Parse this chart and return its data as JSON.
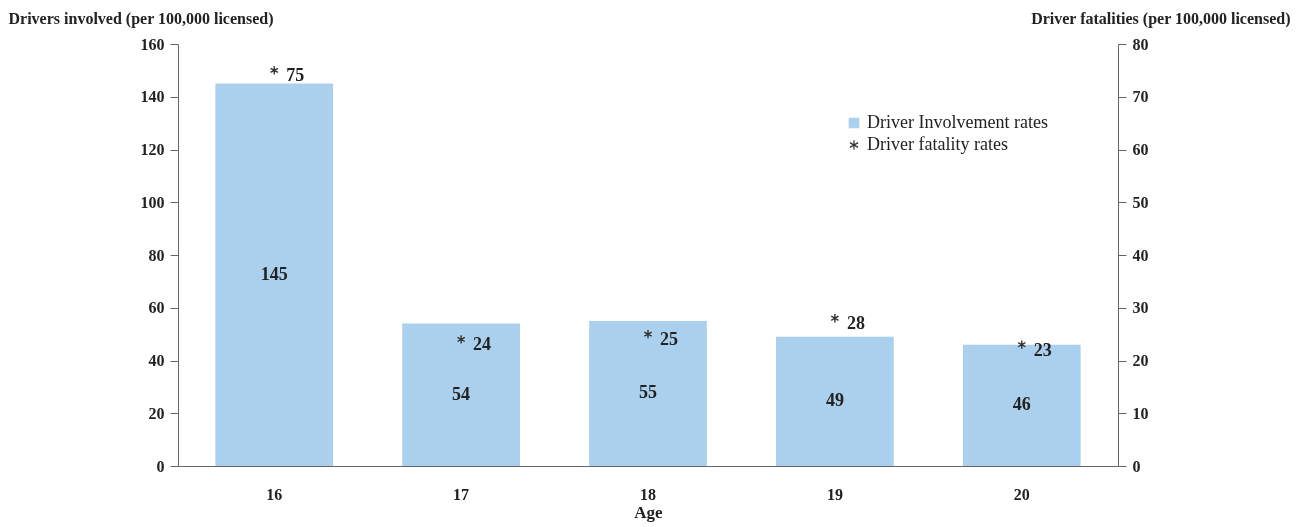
{
  "chart_data": {
    "type": "bar",
    "xlabel": "Age",
    "ylabel": "Drivers involved (per 100,000 licensed)",
    "y2label": "Driver fatalities (per 100,000 licensed)",
    "categories": [
      "16",
      "17",
      "18",
      "19",
      "20"
    ],
    "series": [
      {
        "name": "Driver Involvement rates",
        "color": "#abd0ee",
        "values": [
          145,
          54,
          55,
          49,
          46
        ]
      },
      {
        "name": "Driver fatality rates",
        "type": "scatter",
        "axis": "y2",
        "marker": "cross",
        "color": "#333333",
        "values": [
          75,
          24,
          25,
          28,
          23
        ]
      }
    ],
    "ylim": [
      0,
      160
    ],
    "yticks": [
      0,
      20,
      40,
      60,
      80,
      100,
      120,
      140,
      160
    ],
    "y2lim": [
      0,
      80
    ],
    "y2ticks": [
      0,
      10,
      20,
      30,
      40,
      50,
      60,
      70,
      80
    ],
    "data_labels": true,
    "grid": false,
    "legend": "top right"
  }
}
